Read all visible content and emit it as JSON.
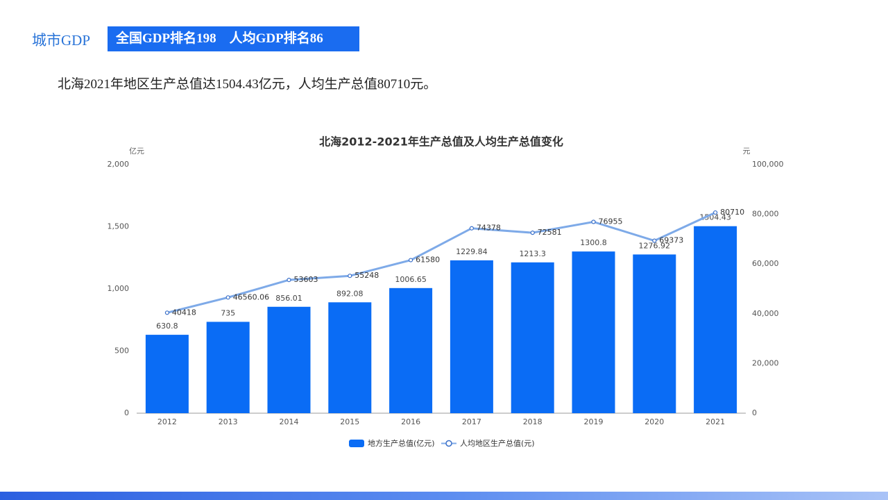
{
  "header": {
    "title": "城市GDP",
    "badge": "全国GDP排名198　人均GDP排名86"
  },
  "description": "北海2021年地区生产总值达1504.43亿元，人均生产总值80710元。",
  "chart_data": {
    "type": "bar",
    "title": "北海2012-2021年生产总值及人均生产总值变化",
    "y_unit": "亿元",
    "y2_unit": "元",
    "categories": [
      "2012",
      "2013",
      "2014",
      "2015",
      "2016",
      "2017",
      "2018",
      "2019",
      "2020",
      "2021"
    ],
    "series": [
      {
        "name": "地方生产总值(亿元)",
        "type": "bar",
        "color": "#0a6cf5",
        "values": [
          630.8,
          735,
          856.01,
          892.08,
          1006.65,
          1229.84,
          1213.3,
          1300.8,
          1276.92,
          1504.43
        ]
      },
      {
        "name": "人均地区生产总值(元)",
        "type": "line",
        "axis": "y2",
        "color": "#7eaae8",
        "values": [
          40418,
          46560.06,
          53603,
          55248,
          61580,
          74378,
          72581,
          76955,
          69373,
          80710
        ]
      }
    ],
    "ylim": [
      0,
      2000
    ],
    "yticks": [
      0,
      500,
      {
        "value": 1000,
        "label": "1,000"
      },
      {
        "value": 1500,
        "label": "1,500"
      },
      {
        "value": 2000,
        "label": "2,000"
      }
    ],
    "y2lim": [
      0,
      100000
    ],
    "y2ticks": [
      0,
      {
        "value": 20000,
        "label": "20,000"
      },
      {
        "value": 40000,
        "label": "40,000"
      },
      {
        "value": 60000,
        "label": "60,000"
      },
      {
        "value": 80000,
        "label": "80,000"
      },
      {
        "value": 100000,
        "label": "100,000"
      }
    ]
  }
}
